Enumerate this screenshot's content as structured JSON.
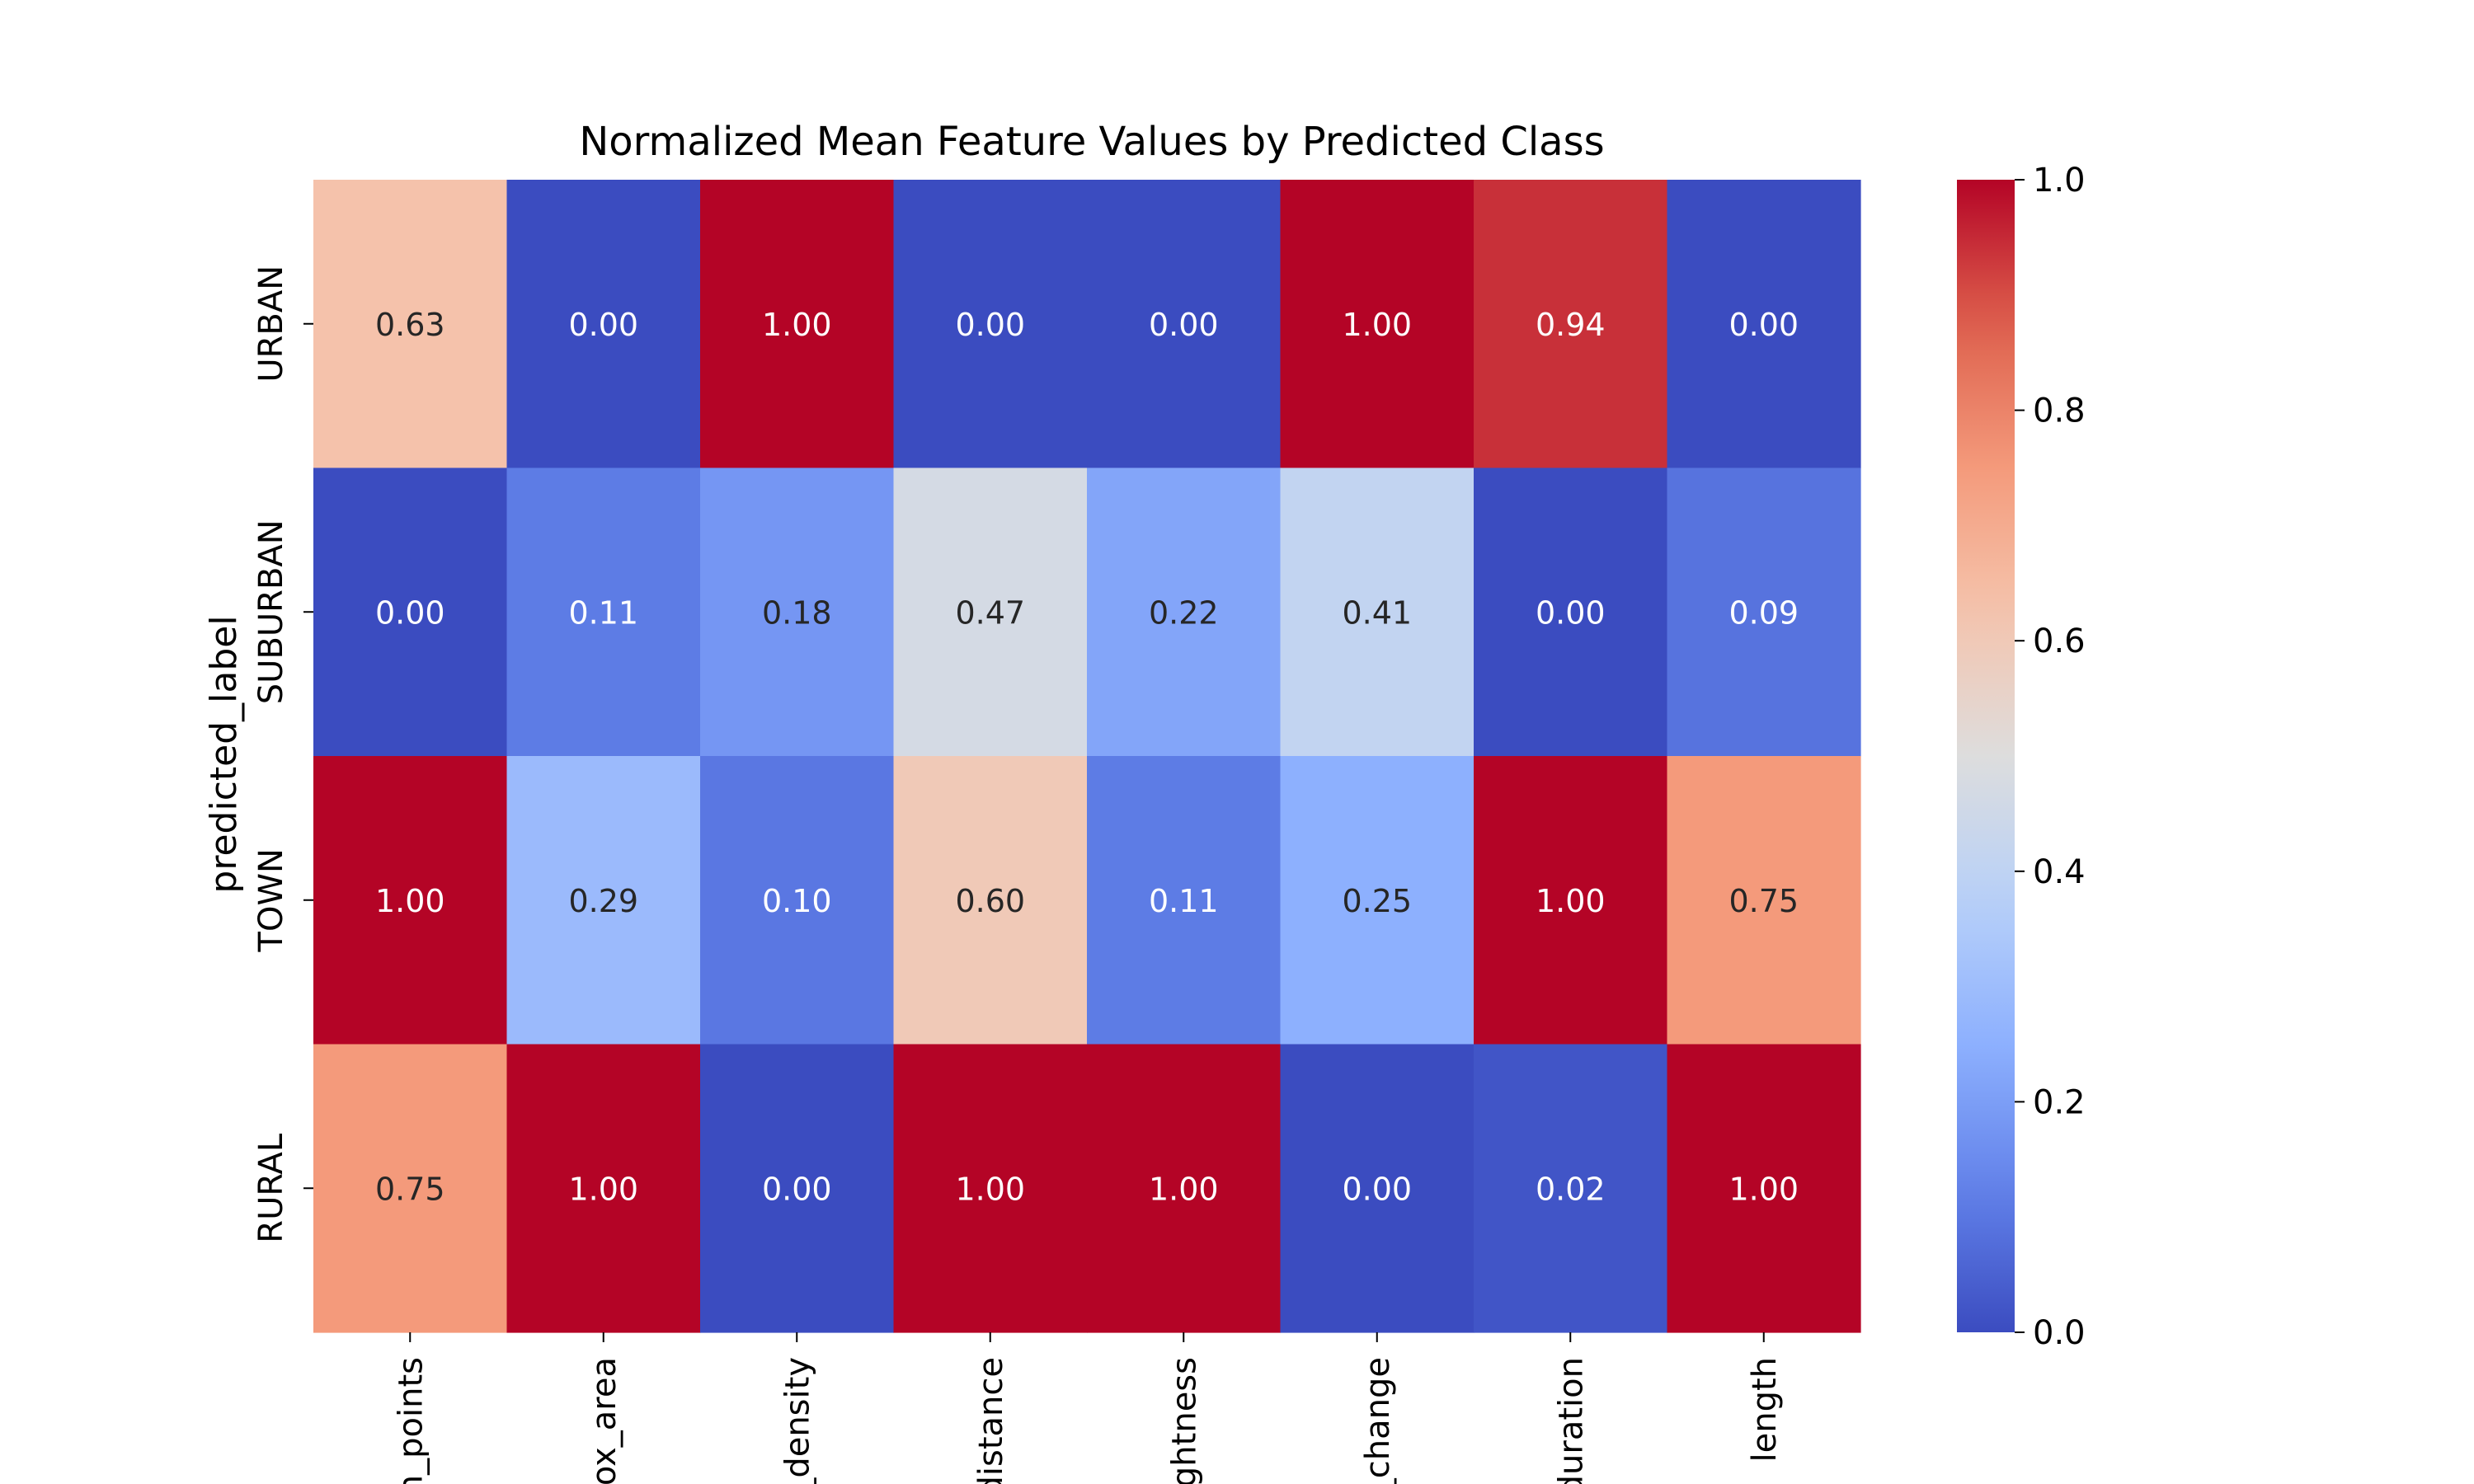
{
  "chart_data": {
    "type": "heatmap",
    "title": "Normalized Mean Feature Values by Predicted Class",
    "ylabel": "predicted_label",
    "xlabel": "",
    "rows": [
      "URBAN",
      "SUBURBAN",
      "TOWN",
      "RURAL"
    ],
    "columns": [
      "n_points",
      "ox_area",
      "_density",
      "distance",
      "ghtness",
      "_change",
      "duration",
      "length"
    ],
    "values": [
      [
        0.63,
        0.0,
        1.0,
        0.0,
        0.0,
        1.0,
        0.94,
        0.0
      ],
      [
        0.0,
        0.11,
        0.18,
        0.47,
        0.22,
        0.41,
        0.0,
        0.09
      ],
      [
        1.0,
        0.29,
        0.1,
        0.6,
        0.11,
        0.25,
        1.0,
        0.75
      ],
      [
        0.75,
        1.0,
        0.0,
        1.0,
        1.0,
        0.0,
        0.02,
        1.0
      ]
    ],
    "value_format": "0.00",
    "colormap": "coolwarm",
    "colorbar": {
      "min": 0.0,
      "max": 1.0,
      "ticks": [
        "0.0",
        "0.2",
        "0.4",
        "0.6",
        "0.8",
        "1.0"
      ]
    }
  }
}
